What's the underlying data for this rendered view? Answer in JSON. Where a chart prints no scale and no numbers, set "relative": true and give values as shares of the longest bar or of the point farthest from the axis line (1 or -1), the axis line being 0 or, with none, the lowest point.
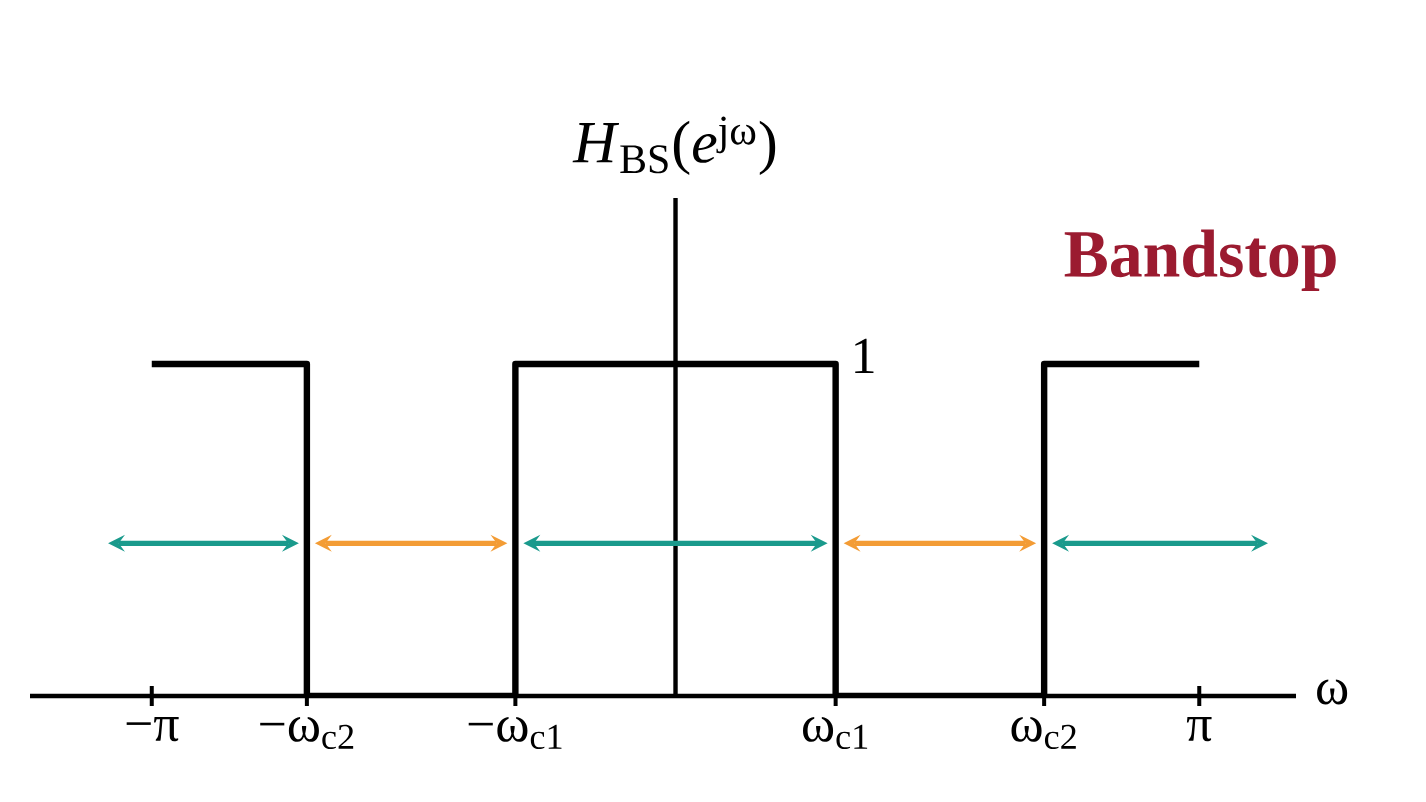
{
  "chart_data": {
    "type": "line",
    "title": "*H*$_{BS}$(*e*$^{jω}$)",
    "xlabel": "ω",
    "annotations": [
      "Bandstop",
      {
        "text": "1",
        "x": 0.96,
        "y": 1
      }
    ],
    "x": [
      -3.14,
      -2.21,
      -2.21,
      -0.96,
      -0.96,
      0.96,
      0.96,
      2.21,
      2.21,
      3.14
    ],
    "series": [
      {
        "color": "#000000",
        "values": [
          1,
          1,
          0,
          0,
          1,
          1,
          0,
          0,
          1,
          1
        ]
      }
    ],
    "relative": true,
    "xlim": [
      -3.87,
      3.72
    ],
    "xticks": [
      {
        "value": -3.14,
        "label": "−π"
      },
      {
        "value": -2.21,
        "label": "−ω$_{c2}$"
      },
      {
        "value": -0.96,
        "label": "−ω$_{c1}$"
      },
      {
        "value": 0.96,
        "label": "ω$_{c1}$"
      },
      {
        "value": 2.21,
        "label": "ω$_{c2}$"
      },
      {
        "value": 3.14,
        "label": "π"
      }
    ],
    "grid": false
  }
}
